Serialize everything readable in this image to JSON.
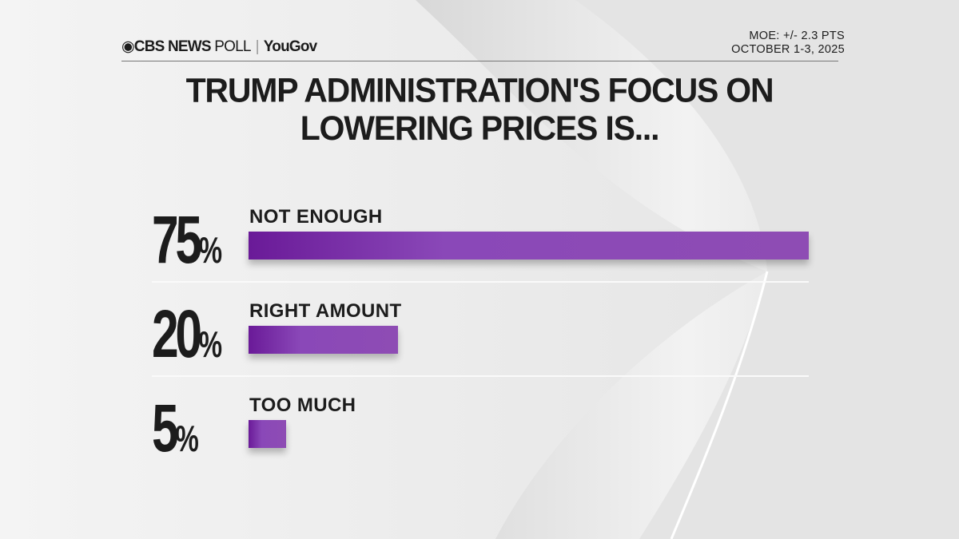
{
  "header": {
    "logo_brand": "CBS NEWS",
    "logo_poll": "POLL",
    "logo_partner": "YouGov",
    "moe": "MOE: +/- 2.3 PTS",
    "dates": "OCTOBER 1-3, 2025"
  },
  "chart_data": {
    "type": "bar",
    "orientation": "horizontal",
    "title_lines": [
      "TRUMP ADMINISTRATION'S FOCUS ON",
      "LOWERING PRICES IS..."
    ],
    "categories": [
      "NOT ENOUGH",
      "RIGHT AMOUNT",
      "TOO MUCH"
    ],
    "values": [
      75,
      20,
      5
    ],
    "value_labels": [
      "75",
      "20",
      "5"
    ],
    "unit": "%",
    "xlim": [
      0,
      75
    ],
    "bar_color": "#8a48b8",
    "bar_color_dark": "#6a1a98",
    "grid": false
  }
}
